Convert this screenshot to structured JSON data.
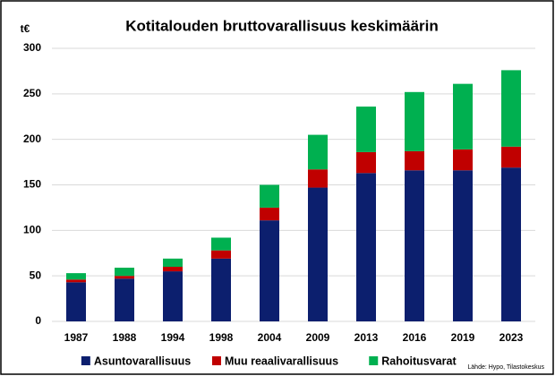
{
  "chart_data": {
    "type": "stacked_bar",
    "title": "Kotitalouden bruttovarallisuus keskimäärin",
    "y_axis_label": "t€",
    "source": "Lähde: Hypo, Tilastokeskus",
    "categories": [
      "1987",
      "1988",
      "1994",
      "1998",
      "2004",
      "2009",
      "2013",
      "2016",
      "2019",
      "2023"
    ],
    "series": [
      {
        "name": "Asuntovarallisuus",
        "color": "#0c1f6e",
        "values": [
          43,
          47,
          55,
          69,
          111,
          147,
          163,
          166,
          166,
          169
        ]
      },
      {
        "name": "Muu reaalivarallisuus",
        "color": "#c00000",
        "values": [
          3,
          3,
          5,
          9,
          14,
          20,
          23,
          21,
          23,
          23
        ]
      },
      {
        "name": "Rahoitusvarat",
        "color": "#00b050",
        "values": [
          7,
          9,
          9,
          14,
          25,
          38,
          50,
          65,
          72,
          84
        ]
      }
    ],
    "ylim": [
      0,
      300
    ],
    "yticks": [
      0,
      50,
      100,
      150,
      200,
      250,
      300
    ],
    "grid": true,
    "legend": "bottom"
  }
}
